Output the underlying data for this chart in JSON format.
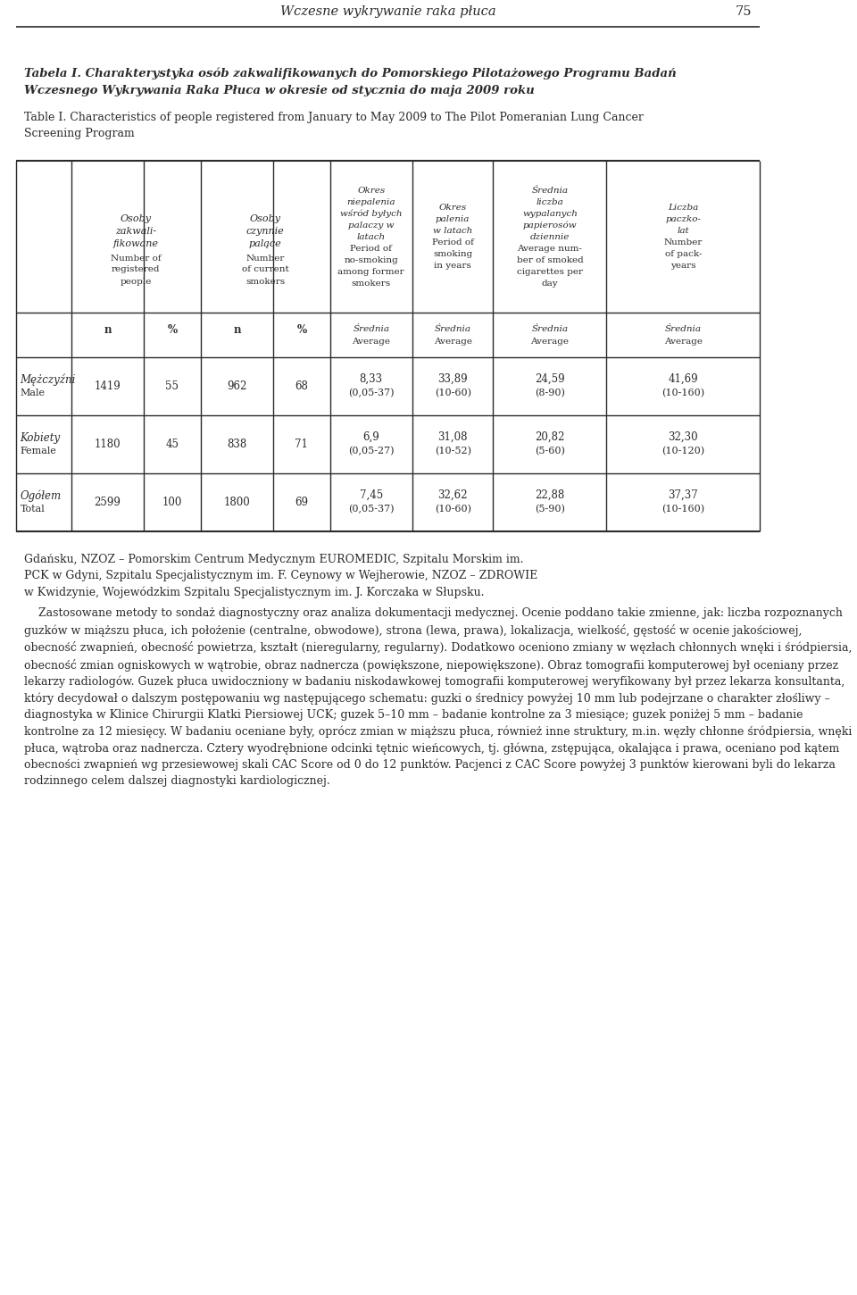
{
  "header_title": "Wczesne wykrywanie raka płuca",
  "page_number": "75",
  "title_pl": "Tabela I. Charakterystyka osób zakwalifikowanych do Pomorskiego Pilotażowego Programu Badań Wczesnego Wykrywania Raka Płuca w okresie od stycznia do maja 2009 roku",
  "title_en": "Table I. Characteristics of people registered from January to May 2009 to The Pilot Pomeranian Lung Cancer Screening Program",
  "col_headers": [
    [
      "Osoby\nzakwali-\nfikowane\nNumber of\nregistered\npeople",
      "Osoby\nczynnie\npalące\nNumber\nof current\nsmokers",
      "Okres\nniepalenia\nwśród byłych\npalaczy w\nlatach\nPeriod of\nno-smoking\namong former\nsmokers",
      "Okres\npalenia\nw latach\nPeriod of\nsmoking\nin years",
      "Średnia\nliczba\nwypalanych\npapierosów\ndziennie\nAverage num-\nber of smoked\ncigarettes per\nday",
      "Liczba\npaczko-\nlat\nNumber\nof pack-\nyears"
    ]
  ],
  "subrow_labels": [
    "n",
    "%",
    "n",
    "%",
    "Średnia\nAverage",
    "Średnia\nAverage",
    "Średnia\nAverage",
    "Średnia\nAverage"
  ],
  "rows": [
    {
      "label_pl": "Mężczyźni",
      "label_en": "Male",
      "values": [
        "1419",
        "55",
        "962",
        "68",
        "8,33\n(0,05-37)",
        "33,89\n(10-60)",
        "24,59\n(8-90)",
        "41,69\n(10-160)"
      ]
    },
    {
      "label_pl": "Kobiety",
      "label_en": "Female",
      "values": [
        "1180",
        "45",
        "838",
        "71",
        "6,9\n(0,05-27)",
        "31,08\n(10-52)",
        "20,82\n(5-60)",
        "32,30\n(10-120)"
      ]
    },
    {
      "label_pl": "Ogółem",
      "label_en": "Total",
      "values": [
        "2599",
        "100",
        "1800",
        "69",
        "7,45\n(0,05-37)",
        "32,62\n(10-60)",
        "22,88\n(5-90)",
        "37,37\n(10-160)"
      ]
    }
  ],
  "footer_text_1": "Gdańsku, NZOZ – Pomorskim Centrum Medycznym EUROMEDIC, Szpitalu Morskim im.",
  "footer_text_2": "PCK w Gdyni, Szpitalu Specjalistycznym im. F. Ceynowy w Wejherowie, NZOZ – ZDROWIE\nw Kwidzynie, Wojewódzkim Szpitalu Specjalistycznym im. J. Korczaka w Słupsku.",
  "body_text": "    Zastosowane metody to sondaż diagnostyczny oraz analiza dokumentacji medycznej. Ocenie poddano takie zmienne, jak: liczba rozpoznanych guzków w miąższu płuca, ich położenie (centralne, obwodowe), strona (lewa, prawa), lokalizacja, wielkość, gęstość w ocenie jakościowej, obecność zwapnień, obecność powietrza, kształt (nieregularny, regularny). Dodatkowo oceniono zmiany w węzłach chłonnych wnęki i śródpiersia, obecność zmian ogniskowych w wątrobie, obraz nadnercza (powiększone, niepowiększone). Obraz tomografii komputerowej był oceniany przez lekarzy radiologów. Guzek płuca uwidoczniony w badaniu niskodawkowej tomografii komputerowej weryfikowany był przez lekarza konsultanta, który decydował o dalszym postępowaniu wg następującego schematu: guzki o średnicy powyżej 10 mm lub podejrzane o charakter złośliwy – diagnostyka w Klinice Chirurgii Klatki Piersiowej UCK; guzek 5–10 mm – badanie kontrolne za 3 miesiące; guzek poniżej 5 mm – badanie kontrolne za 12 miesięcy. W badaniu oceniane były, oprócz zmian w miąższu płuca, również inne struktury, m.in. węzły chłonne śródpiersia, wnęki płuca, wątroba oraz nadnercza. Cztery wyodrębnione odcinki tętnic wieńcowych, tj. główna, zstępująca, okalająca i prawa, oceniano pod kątem obecności zwapnień wg przesiewowej skali CAC Score od 0 do 12 punktów. Pacjenci z CAC Score powyżej 3 punktów kierowani byli do lekarza rodzinnego celem dalszej diagnostyki kardiologicznej.",
  "font_color": "#2b2b2b",
  "bg_color": "#ffffff",
  "line_color": "#2b2b2b",
  "font_size_header": 9.5,
  "font_size_body": 9.0,
  "font_size_table": 8.5,
  "font_size_title_bar": 10.0
}
